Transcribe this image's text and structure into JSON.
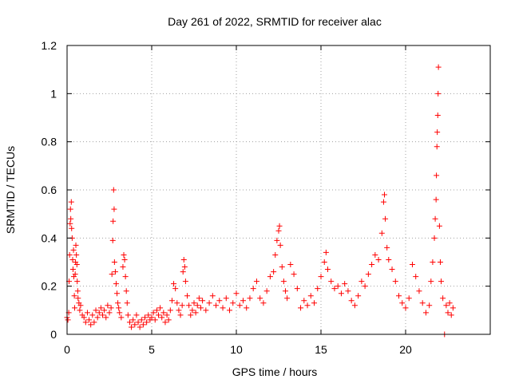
{
  "chart_data": {
    "type": "scatter",
    "title": "Day 261 of 2022, SRMTID for receiver alac",
    "xlabel": "GPS time / hours",
    "ylabel": "SRMTID / TECUs",
    "xlim": [
      0,
      25
    ],
    "ylim": [
      0,
      1.2
    ],
    "x_ticks": [
      "0",
      "5",
      "10",
      "15",
      "20"
    ],
    "x_tick_values": [
      0,
      5,
      10,
      15,
      20
    ],
    "y_ticks": [
      "0",
      "0.2",
      "0.4",
      "0.6",
      "0.8",
      "1",
      "1.2"
    ],
    "y_tick_values": [
      0,
      0.2,
      0.4,
      0.6,
      0.8,
      1.0,
      1.2
    ],
    "grid": true,
    "marker": "+",
    "color": "#ff0000",
    "series": [
      {
        "name": "SRMTID",
        "points": [
          [
            0.0,
            0.07
          ],
          [
            0.05,
            0.06
          ],
          [
            0.1,
            0.09
          ],
          [
            0.12,
            0.22
          ],
          [
            0.15,
            0.33
          ],
          [
            0.18,
            0.46
          ],
          [
            0.2,
            0.52
          ],
          [
            0.22,
            0.48
          ],
          [
            0.25,
            0.55
          ],
          [
            0.27,
            0.44
          ],
          [
            0.3,
            0.4
          ],
          [
            0.33,
            0.31
          ],
          [
            0.35,
            0.27
          ],
          [
            0.38,
            0.35
          ],
          [
            0.4,
            0.24
          ],
          [
            0.43,
            0.16
          ],
          [
            0.45,
            0.11
          ],
          [
            0.48,
            0.25
          ],
          [
            0.5,
            0.3
          ],
          [
            0.52,
            0.37
          ],
          [
            0.55,
            0.33
          ],
          [
            0.58,
            0.29
          ],
          [
            0.6,
            0.22
          ],
          [
            0.63,
            0.18
          ],
          [
            0.65,
            0.15
          ],
          [
            0.7,
            0.13
          ],
          [
            0.75,
            0.1
          ],
          [
            0.8,
            0.12
          ],
          [
            0.9,
            0.08
          ],
          [
            1.0,
            0.07
          ],
          [
            1.1,
            0.05
          ],
          [
            1.2,
            0.09
          ],
          [
            1.3,
            0.06
          ],
          [
            1.4,
            0.04
          ],
          [
            1.5,
            0.08
          ],
          [
            1.6,
            0.05
          ],
          [
            1.7,
            0.1
          ],
          [
            1.8,
            0.07
          ],
          [
            1.9,
            0.09
          ],
          [
            2.0,
            0.11
          ],
          [
            2.1,
            0.08
          ],
          [
            2.2,
            0.1
          ],
          [
            2.3,
            0.07
          ],
          [
            2.4,
            0.12
          ],
          [
            2.5,
            0.09
          ],
          [
            2.6,
            0.11
          ],
          [
            2.65,
            0.25
          ],
          [
            2.7,
            0.39
          ],
          [
            2.72,
            0.47
          ],
          [
            2.75,
            0.6
          ],
          [
            2.78,
            0.52
          ],
          [
            2.8,
            0.3
          ],
          [
            2.85,
            0.26
          ],
          [
            2.9,
            0.21
          ],
          [
            2.95,
            0.17
          ],
          [
            3.0,
            0.13
          ],
          [
            3.05,
            0.11
          ],
          [
            3.1,
            0.09
          ],
          [
            3.2,
            0.07
          ],
          [
            3.3,
            0.28
          ],
          [
            3.35,
            0.33
          ],
          [
            3.4,
            0.31
          ],
          [
            3.45,
            0.24
          ],
          [
            3.5,
            0.18
          ],
          [
            3.55,
            0.13
          ],
          [
            3.6,
            0.08
          ],
          [
            3.7,
            0.05
          ],
          [
            3.8,
            0.03
          ],
          [
            3.9,
            0.06
          ],
          [
            4.0,
            0.04
          ],
          [
            4.1,
            0.08
          ],
          [
            4.2,
            0.05
          ],
          [
            4.3,
            0.03
          ],
          [
            4.4,
            0.06
          ],
          [
            4.5,
            0.04
          ],
          [
            4.6,
            0.07
          ],
          [
            4.7,
            0.05
          ],
          [
            4.8,
            0.08
          ],
          [
            4.9,
            0.06
          ],
          [
            5.0,
            0.07
          ],
          [
            5.1,
            0.09
          ],
          [
            5.2,
            0.06
          ],
          [
            5.3,
            0.1
          ],
          [
            5.4,
            0.08
          ],
          [
            5.5,
            0.11
          ],
          [
            5.6,
            0.07
          ],
          [
            5.7,
            0.09
          ],
          [
            5.8,
            0.05
          ],
          [
            5.9,
            0.08
          ],
          [
            6.0,
            0.06
          ],
          [
            6.1,
            0.1
          ],
          [
            6.2,
            0.14
          ],
          [
            6.3,
            0.21
          ],
          [
            6.4,
            0.19
          ],
          [
            6.5,
            0.13
          ],
          [
            6.6,
            0.1
          ],
          [
            6.7,
            0.08
          ],
          [
            6.8,
            0.12
          ],
          [
            6.85,
            0.26
          ],
          [
            6.9,
            0.31
          ],
          [
            6.95,
            0.28
          ],
          [
            7.0,
            0.22
          ],
          [
            7.1,
            0.16
          ],
          [
            7.2,
            0.12
          ],
          [
            7.3,
            0.08
          ],
          [
            7.4,
            0.1
          ],
          [
            7.5,
            0.13
          ],
          [
            7.6,
            0.09
          ],
          [
            7.7,
            0.12
          ],
          [
            7.8,
            0.15
          ],
          [
            7.9,
            0.11
          ],
          [
            8.0,
            0.14
          ],
          [
            8.2,
            0.1
          ],
          [
            8.4,
            0.13
          ],
          [
            8.6,
            0.16
          ],
          [
            8.8,
            0.12
          ],
          [
            9.0,
            0.14
          ],
          [
            9.2,
            0.11
          ],
          [
            9.4,
            0.15
          ],
          [
            9.6,
            0.1
          ],
          [
            9.8,
            0.13
          ],
          [
            10.0,
            0.17
          ],
          [
            10.2,
            0.12
          ],
          [
            10.4,
            0.14
          ],
          [
            10.6,
            0.11
          ],
          [
            10.8,
            0.15
          ],
          [
            11.0,
            0.19
          ],
          [
            11.2,
            0.22
          ],
          [
            11.4,
            0.15
          ],
          [
            11.6,
            0.13
          ],
          [
            11.8,
            0.18
          ],
          [
            12.0,
            0.24
          ],
          [
            12.2,
            0.26
          ],
          [
            12.3,
            0.33
          ],
          [
            12.4,
            0.39
          ],
          [
            12.5,
            0.43
          ],
          [
            12.55,
            0.45
          ],
          [
            12.6,
            0.37
          ],
          [
            12.7,
            0.28
          ],
          [
            12.8,
            0.22
          ],
          [
            12.9,
            0.18
          ],
          [
            13.0,
            0.15
          ],
          [
            13.2,
            0.29
          ],
          [
            13.4,
            0.25
          ],
          [
            13.6,
            0.19
          ],
          [
            13.8,
            0.11
          ],
          [
            14.0,
            0.14
          ],
          [
            14.2,
            0.12
          ],
          [
            14.4,
            0.16
          ],
          [
            14.6,
            0.13
          ],
          [
            14.8,
            0.19
          ],
          [
            15.0,
            0.24
          ],
          [
            15.2,
            0.3
          ],
          [
            15.3,
            0.34
          ],
          [
            15.4,
            0.27
          ],
          [
            15.6,
            0.22
          ],
          [
            15.8,
            0.19
          ],
          [
            16.0,
            0.2
          ],
          [
            16.2,
            0.17
          ],
          [
            16.4,
            0.21
          ],
          [
            16.6,
            0.18
          ],
          [
            16.8,
            0.14
          ],
          [
            17.0,
            0.12
          ],
          [
            17.2,
            0.16
          ],
          [
            17.4,
            0.22
          ],
          [
            17.6,
            0.2
          ],
          [
            17.8,
            0.25
          ],
          [
            18.0,
            0.29
          ],
          [
            18.2,
            0.33
          ],
          [
            18.4,
            0.31
          ],
          [
            18.6,
            0.42
          ],
          [
            18.7,
            0.55
          ],
          [
            18.75,
            0.58
          ],
          [
            18.8,
            0.48
          ],
          [
            18.9,
            0.36
          ],
          [
            19.0,
            0.31
          ],
          [
            19.2,
            0.27
          ],
          [
            19.4,
            0.22
          ],
          [
            19.6,
            0.16
          ],
          [
            19.8,
            0.13
          ],
          [
            20.0,
            0.11
          ],
          [
            20.2,
            0.15
          ],
          [
            20.4,
            0.29
          ],
          [
            20.6,
            0.24
          ],
          [
            20.8,
            0.18
          ],
          [
            21.0,
            0.13
          ],
          [
            21.2,
            0.09
          ],
          [
            21.4,
            0.12
          ],
          [
            21.5,
            0.22
          ],
          [
            21.6,
            0.3
          ],
          [
            21.7,
            0.4
          ],
          [
            21.75,
            0.48
          ],
          [
            21.8,
            0.56
          ],
          [
            21.82,
            0.66
          ],
          [
            21.85,
            0.78
          ],
          [
            21.87,
            0.84
          ],
          [
            21.9,
            0.91
          ],
          [
            21.92,
            1.0
          ],
          [
            21.94,
            1.11
          ],
          [
            22.0,
            0.45
          ],
          [
            22.05,
            0.3
          ],
          [
            22.1,
            0.22
          ],
          [
            22.2,
            0.15
          ],
          [
            22.3,
            0.0
          ],
          [
            22.4,
            0.12
          ],
          [
            22.5,
            0.09
          ],
          [
            22.6,
            0.13
          ],
          [
            22.7,
            0.08
          ],
          [
            22.8,
            0.11
          ]
        ]
      }
    ]
  }
}
